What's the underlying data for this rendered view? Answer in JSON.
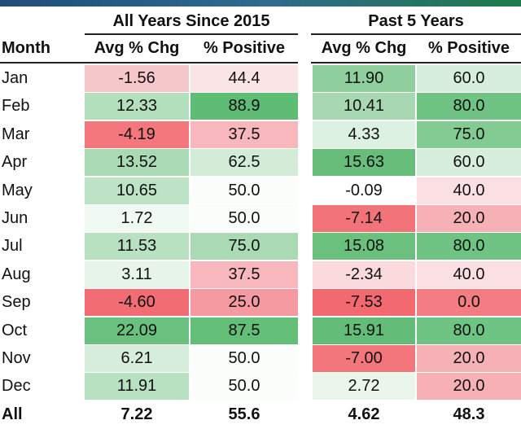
{
  "headers": {
    "group1": "All Years Since 2015",
    "group2": "Past 5 Years",
    "month": "Month",
    "avg1": "Avg % Chg",
    "pos1": "% Positive",
    "avg2": "Avg % Chg",
    "pos2": "% Positive"
  },
  "rows": [
    {
      "month": "Jan",
      "avg1": "-1.56",
      "pos1": "44.4",
      "avg2": "11.90",
      "pos2": "60.0"
    },
    {
      "month": "Feb",
      "avg1": "12.33",
      "pos1": "88.9",
      "avg2": "10.41",
      "pos2": "80.0"
    },
    {
      "month": "Mar",
      "avg1": "-4.19",
      "pos1": "37.5",
      "avg2": "4.33",
      "pos2": "75.0"
    },
    {
      "month": "Apr",
      "avg1": "13.52",
      "pos1": "62.5",
      "avg2": "15.63",
      "pos2": "60.0"
    },
    {
      "month": "May",
      "avg1": "10.65",
      "pos1": "50.0",
      "avg2": "-0.09",
      "pos2": "40.0"
    },
    {
      "month": "Jun",
      "avg1": "1.72",
      "pos1": "50.0",
      "avg2": "-7.14",
      "pos2": "20.0"
    },
    {
      "month": "Jul",
      "avg1": "11.53",
      "pos1": "75.0",
      "avg2": "15.08",
      "pos2": "80.0"
    },
    {
      "month": "Aug",
      "avg1": "3.11",
      "pos1": "37.5",
      "avg2": "-2.34",
      "pos2": "40.0"
    },
    {
      "month": "Sep",
      "avg1": "-4.60",
      "pos1": "25.0",
      "avg2": "-7.53",
      "pos2": "0.0"
    },
    {
      "month": "Oct",
      "avg1": "22.09",
      "pos1": "87.5",
      "avg2": "15.91",
      "pos2": "80.0"
    },
    {
      "month": "Nov",
      "avg1": "6.21",
      "pos1": "50.0",
      "avg2": "-7.00",
      "pos2": "20.0"
    },
    {
      "month": "Dec",
      "avg1": "11.91",
      "pos1": "50.0",
      "avg2": "2.72",
      "pos2": "20.0"
    }
  ],
  "colors": {
    "rows": [
      [
        "#f6c7cb",
        "#fbe4e6",
        "#8fcf9d",
        "#d6eedb"
      ],
      [
        "#b3dfbd",
        "#5ebc74",
        "#a7d8b2",
        "#6fc383"
      ],
      [
        "#f3777d",
        "#f8b7bc",
        "#dcf1e1",
        "#82cb93"
      ],
      [
        "#a9dab4",
        "#d2ecd8",
        "#66be7a",
        "#d6eedb"
      ],
      [
        "#bce3c5",
        "#fbfdfb",
        "#ffffff",
        "#fbe0e3"
      ],
      [
        "#f1f9f3",
        "#fbfdfb",
        "#f3737a",
        "#f6b1b6"
      ],
      [
        "#b8e1c1",
        "#a9dab4",
        "#6bc07e",
        "#6fc383"
      ],
      [
        "#e6f4e9",
        "#f8b7bc",
        "#fadadd",
        "#fbe0e3"
      ],
      [
        "#f26d73",
        "#f59aa0",
        "#f26a70",
        "#f37d83"
      ],
      [
        "#6ac17f",
        "#63be78",
        "#63bd78",
        "#6fc383"
      ],
      [
        "#d7eedc",
        "#fbfdfb",
        "#f3767c",
        "#f6b1b6"
      ],
      [
        "#b8e1c1",
        "#fbfdfb",
        "#eaf6ec",
        "#f6b1b6"
      ]
    ]
  },
  "footer": {
    "label": "All",
    "avg1": "7.22",
    "pos1": "55.6",
    "avg2": "4.62",
    "pos2": "48.3"
  }
}
